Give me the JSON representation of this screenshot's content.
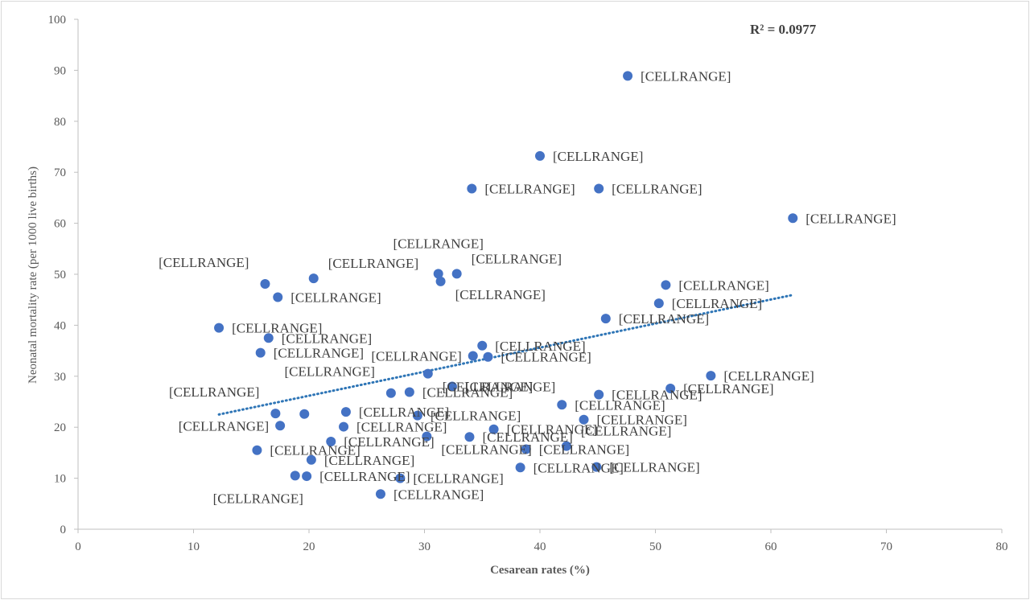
{
  "chart_data": {
    "type": "scatter",
    "title": "",
    "xlabel": "Cesarean rates (%)",
    "ylabel": "Neonatal mortality rate (per 1000 live births)",
    "xlim": [
      0,
      80
    ],
    "ylim": [
      0,
      100
    ],
    "x_ticks": [
      0,
      10,
      20,
      30,
      40,
      50,
      60,
      70,
      80
    ],
    "y_ticks": [
      0,
      10,
      20,
      30,
      40,
      50,
      60,
      70,
      80,
      90,
      100
    ],
    "grid": false,
    "legend": "none",
    "marker_color": "#4472c4",
    "trendline_color": "#2e75b6",
    "r_squared_label": "R² = 0.0977",
    "point_label_text": "[CELLRANGE]",
    "trendline": {
      "x": [
        12.2,
        61.8
      ],
      "y": [
        22.5,
        45.9
      ]
    },
    "points": [
      {
        "x": 47.6,
        "y": 88.9,
        "label": "[CELLRANGE]",
        "label_pos": "right"
      },
      {
        "x": 40.0,
        "y": 73.2,
        "label": "[CELLRANGE]",
        "label_pos": "right"
      },
      {
        "x": 34.1,
        "y": 66.8,
        "label": "[CELLRANGE]",
        "label_pos": "right"
      },
      {
        "x": 45.1,
        "y": 66.8,
        "label": "[CELLRANGE]",
        "label_pos": "right"
      },
      {
        "x": 61.9,
        "y": 61.0,
        "label": "[CELLRANGE]",
        "label_pos": "right"
      },
      {
        "x": 31.2,
        "y": 50.1,
        "label": "[CELLRANGE]",
        "label_pos": "above"
      },
      {
        "x": 32.8,
        "y": 50.1,
        "label": "[CELLRANGE]",
        "label_pos": "upper-right"
      },
      {
        "x": 31.4,
        "y": 48.6,
        "label": "[CELLRANGE]",
        "label_pos": "below-right"
      },
      {
        "x": 20.4,
        "y": 49.2,
        "label": "[CELLRANGE]",
        "label_pos": "upper-right"
      },
      {
        "x": 16.2,
        "y": 48.1,
        "label": "[CELLRANGE]",
        "label_pos": "upper-left"
      },
      {
        "x": 17.3,
        "y": 45.5,
        "label": "[CELLRANGE]",
        "label_pos": "right"
      },
      {
        "x": 50.9,
        "y": 47.9,
        "label": "[CELLRANGE]",
        "label_pos": "right"
      },
      {
        "x": 50.3,
        "y": 44.3,
        "label": "[CELLRANGE]",
        "label_pos": "right"
      },
      {
        "x": 45.7,
        "y": 41.3,
        "label": "[CELLRANGE]",
        "label_pos": "right"
      },
      {
        "x": 12.2,
        "y": 39.5,
        "label": "[CELLRANGE]",
        "label_pos": "right"
      },
      {
        "x": 16.5,
        "y": 37.5,
        "label": "[CELLRANGE]",
        "label_pos": "right"
      },
      {
        "x": 15.8,
        "y": 34.6,
        "label": "[CELLRANGE]",
        "label_pos": "right"
      },
      {
        "x": 35.0,
        "y": 36.0,
        "label": "[CELLRANGE]",
        "label_pos": "right"
      },
      {
        "x": 34.2,
        "y": 34.0,
        "label": "[CELLRANGE]",
        "label_pos": "left"
      },
      {
        "x": 35.5,
        "y": 33.8,
        "label": "[CELLRANGE]",
        "label_pos": "right"
      },
      {
        "x": 30.3,
        "y": 30.5,
        "label": "[CELLRANGE]",
        "label_pos": "below-right"
      },
      {
        "x": 32.4,
        "y": 28.0,
        "label": "[CELLRANGE]",
        "label_pos": "right"
      },
      {
        "x": 27.1,
        "y": 26.7,
        "label": "[CELLRANGE]",
        "label_pos": "upper-left"
      },
      {
        "x": 28.7,
        "y": 26.9,
        "label": "[CELLRANGE]",
        "label_pos": "right"
      },
      {
        "x": 54.8,
        "y": 30.1,
        "label": "[CELLRANGE]",
        "label_pos": "right"
      },
      {
        "x": 51.3,
        "y": 27.6,
        "label": "[CELLRANGE]",
        "label_pos": "right"
      },
      {
        "x": 45.1,
        "y": 26.4,
        "label": "[CELLRANGE]",
        "label_pos": "right"
      },
      {
        "x": 41.9,
        "y": 24.4,
        "label": "[CELLRANGE]",
        "label_pos": "right"
      },
      {
        "x": 43.8,
        "y": 21.5,
        "label": "[CELLRANGE]",
        "label_pos": "right"
      },
      {
        "x": 17.1,
        "y": 22.7,
        "label": "[CELLRANGE]",
        "label_pos": "upper-left"
      },
      {
        "x": 19.6,
        "y": 22.6,
        "label": "",
        "label_pos": "none"
      },
      {
        "x": 23.2,
        "y": 23.0,
        "label": "[CELLRANGE]",
        "label_pos": "right"
      },
      {
        "x": 29.4,
        "y": 22.3,
        "label": "[CELLRANGE]",
        "label_pos": "right"
      },
      {
        "x": 17.5,
        "y": 20.3,
        "label": "[CELLRANGE]",
        "label_pos": "left"
      },
      {
        "x": 23.0,
        "y": 20.1,
        "label": "[CELLRANGE]",
        "label_pos": "right"
      },
      {
        "x": 36.0,
        "y": 19.6,
        "label": "[CELLRANGE]",
        "label_pos": "right"
      },
      {
        "x": 30.2,
        "y": 18.2,
        "label": "[CELLRANGE]",
        "label_pos": "below-right"
      },
      {
        "x": 33.9,
        "y": 18.1,
        "label": "[CELLRANGE]",
        "label_pos": "right"
      },
      {
        "x": 21.9,
        "y": 17.2,
        "label": "[CELLRANGE]",
        "label_pos": "right"
      },
      {
        "x": 15.5,
        "y": 15.5,
        "label": "[CELLRANGE]",
        "label_pos": "right"
      },
      {
        "x": 38.8,
        "y": 15.7,
        "label": "[CELLRANGE]",
        "label_pos": "right"
      },
      {
        "x": 42.3,
        "y": 16.3,
        "label": "[CELLRANGE]",
        "label_pos": "upper-right"
      },
      {
        "x": 20.2,
        "y": 13.6,
        "label": "[CELLRANGE]",
        "label_pos": "right"
      },
      {
        "x": 38.3,
        "y": 12.1,
        "label": "[CELLRANGE]",
        "label_pos": "right"
      },
      {
        "x": 44.9,
        "y": 12.2,
        "label": "[CELLRANGE]",
        "label_pos": "right"
      },
      {
        "x": 18.8,
        "y": 10.5,
        "label": "",
        "label_pos": "none"
      },
      {
        "x": 19.8,
        "y": 10.4,
        "label": "[CELLRANGE]",
        "label_pos": "right"
      },
      {
        "x": 27.9,
        "y": 10.0,
        "label": "[CELLRANGE]",
        "label_pos": "right"
      },
      {
        "x": 26.2,
        "y": 6.9,
        "label": "[CELLRANGE]",
        "label_pos": "right"
      },
      {
        "x": 26.2,
        "y": 6.9,
        "label": "[CELLRANGE]",
        "label_pos": "lower-left"
      }
    ]
  }
}
